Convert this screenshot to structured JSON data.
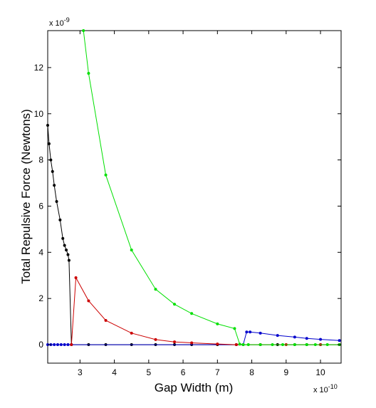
{
  "chart_data": {
    "type": "line",
    "title": "",
    "xlabel": "Gap Width (m)",
    "ylabel": "Total Repulsive Force (Newtons)",
    "x_multiplier": {
      "base": "x 10",
      "exp": "-10"
    },
    "y_multiplier": {
      "base": "x 10",
      "exp": "-9"
    },
    "xlim": [
      2.06,
      10.6
    ],
    "ylim": [
      -0.8,
      13.6
    ],
    "xticks": [
      3,
      4,
      5,
      6,
      7,
      8,
      9,
      10
    ],
    "yticks": [
      0,
      2,
      4,
      6,
      8,
      10,
      12
    ],
    "grid": false,
    "legend": "none",
    "series": [
      {
        "color": "#000000",
        "marker": "dot",
        "points": [
          [
            2.06,
            9.5
          ],
          [
            2.1,
            8.7
          ],
          [
            2.15,
            8.0
          ],
          [
            2.2,
            7.5
          ],
          [
            2.25,
            6.9
          ],
          [
            2.32,
            6.2
          ],
          [
            2.42,
            5.4
          ],
          [
            2.5,
            4.6
          ],
          [
            2.55,
            4.3
          ],
          [
            2.6,
            4.1
          ],
          [
            2.65,
            3.9
          ],
          [
            2.68,
            3.65
          ],
          [
            2.75,
            0.0
          ],
          [
            3.25,
            0.0
          ],
          [
            3.75,
            0.0
          ],
          [
            4.5,
            0.0
          ],
          [
            5.2,
            0.0
          ],
          [
            5.75,
            0.0
          ],
          [
            6.25,
            0.0
          ],
          [
            7.0,
            0.0
          ],
          [
            7.55,
            0.0
          ],
          [
            8.25,
            0.0
          ],
          [
            8.75,
            0.0
          ],
          [
            9.25,
            0.0
          ],
          [
            9.6,
            0.0
          ],
          [
            10.0,
            0.0
          ],
          [
            10.55,
            0.0
          ]
        ]
      },
      {
        "color": "#0000cc",
        "marker": "dot",
        "points": [
          [
            2.06,
            0.0
          ],
          [
            2.15,
            0.0
          ],
          [
            2.25,
            0.0
          ],
          [
            2.35,
            0.0
          ],
          [
            2.45,
            0.0
          ],
          [
            2.55,
            0.0
          ],
          [
            2.65,
            0.0
          ],
          [
            2.75,
            0.0
          ],
          [
            7.75,
            0.0
          ],
          [
            7.85,
            0.55
          ],
          [
            7.95,
            0.55
          ],
          [
            8.25,
            0.5
          ],
          [
            8.75,
            0.4
          ],
          [
            9.25,
            0.33
          ],
          [
            9.6,
            0.27
          ],
          [
            10.0,
            0.23
          ],
          [
            10.55,
            0.18
          ]
        ]
      },
      {
        "color": "#cc0000",
        "marker": "dot",
        "points": [
          [
            2.75,
            0.0
          ],
          [
            2.88,
            2.9
          ],
          [
            3.25,
            1.9
          ],
          [
            3.75,
            1.05
          ],
          [
            4.5,
            0.5
          ],
          [
            5.2,
            0.22
          ],
          [
            5.75,
            0.12
          ],
          [
            6.25,
            0.08
          ],
          [
            7.0,
            0.03
          ],
          [
            7.55,
            0.0
          ],
          [
            8.25,
            0.0
          ],
          [
            9.0,
            0.0
          ],
          [
            10.0,
            0.0
          ],
          [
            10.55,
            0.0
          ]
        ]
      },
      {
        "color": "#00e000",
        "marker": "dot",
        "points": [
          [
            3.1,
            13.6
          ],
          [
            3.25,
            11.75
          ],
          [
            3.75,
            7.35
          ],
          [
            4.5,
            4.1
          ],
          [
            5.2,
            2.4
          ],
          [
            5.75,
            1.75
          ],
          [
            6.25,
            1.35
          ],
          [
            7.0,
            0.9
          ],
          [
            7.5,
            0.7
          ],
          [
            7.65,
            0.02
          ],
          [
            7.75,
            0.0
          ],
          [
            7.9,
            0.0
          ],
          [
            8.25,
            0.0
          ],
          [
            8.6,
            0.0
          ],
          [
            8.9,
            0.0
          ],
          [
            9.25,
            0.0
          ],
          [
            9.6,
            0.0
          ],
          [
            9.85,
            0.0
          ],
          [
            10.2,
            0.0
          ],
          [
            10.55,
            0.0
          ]
        ]
      }
    ]
  }
}
